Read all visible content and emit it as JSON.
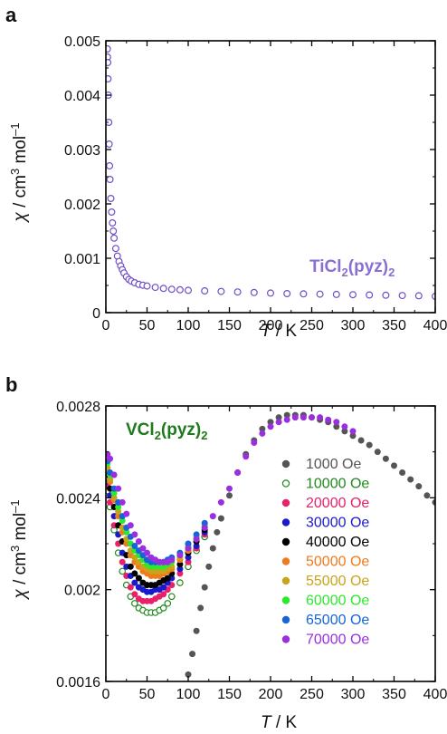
{
  "chart_data": [
    {
      "panel": "a",
      "type": "scatter",
      "compound_label": {
        "main": "TiCl",
        "sub1": "2",
        "mid": "(pyz)",
        "sub2": "2"
      },
      "compound_color": "#8a6fd1",
      "xlabel": {
        "italic": "T",
        "rest": " / K"
      },
      "ylabel": {
        "greek": "χ",
        "pre": " / cm",
        "sup1": "3",
        "post": " mol",
        "sup2": "–1"
      },
      "xlim": [
        0,
        400
      ],
      "ylim": [
        0,
        0.005
      ],
      "xticks": [
        "0",
        "50",
        "100",
        "150",
        "200",
        "250",
        "300",
        "350",
        "400"
      ],
      "yticks": [
        "0",
        "0.001",
        "0.002",
        "0.003",
        "0.004",
        "0.005"
      ],
      "marker_color": "#6f4fc7",
      "series": [
        {
          "x": [
            1.8,
            2,
            2.3,
            2.6,
            3,
            3.5,
            4,
            4.5,
            5,
            6,
            7,
            8,
            9,
            10,
            12,
            14,
            16,
            18,
            20,
            22,
            25,
            28,
            31,
            35,
            40,
            45,
            50,
            60,
            70,
            80,
            90,
            100,
            120,
            140,
            160,
            180,
            200,
            220,
            240,
            260,
            280,
            300,
            320,
            340,
            360,
            380,
            400
          ],
          "y": [
            0.00485,
            0.0047,
            0.0046,
            0.0043,
            0.004,
            0.0035,
            0.0031,
            0.0027,
            0.00245,
            0.0021,
            0.00185,
            0.00165,
            0.0015,
            0.00137,
            0.00118,
            0.00104,
            0.00094,
            0.00086,
            0.00079,
            0.00073,
            0.00066,
            0.00061,
            0.00058,
            0.00055,
            0.00052,
            0.000505,
            0.00049,
            0.000465,
            0.000445,
            0.00043,
            0.00042,
            0.00041,
            0.0004,
            0.00039,
            0.00038,
            0.00037,
            0.00036,
            0.00035,
            0.000345,
            0.00034,
            0.000335,
            0.00033,
            0.000325,
            0.00032,
            0.000315,
            0.00031,
            0.0003
          ]
        }
      ]
    },
    {
      "panel": "b",
      "type": "scatter",
      "compound_label": {
        "main": "VCl",
        "sub1": "2",
        "mid": "(pyz)",
        "sub2": "2"
      },
      "compound_color": "#1e7a1e",
      "xlabel": {
        "italic": "T",
        "rest": " / K"
      },
      "ylabel": {
        "greek": "χ",
        "pre": " / cm",
        "sup1": "3",
        "post": " mol",
        "sup2": "–1"
      },
      "xlim": [
        0,
        400
      ],
      "ylim": [
        0.0016,
        0.0028
      ],
      "xticks": [
        "0",
        "50",
        "100",
        "150",
        "200",
        "250",
        "300",
        "350",
        "400"
      ],
      "yticks": [
        "0.0016",
        "0.002",
        "0.0024",
        "0.0028"
      ],
      "legend_position": "right",
      "series": [
        {
          "name": "1000 Oe",
          "color": "#555555",
          "open": false,
          "x": [
            95,
            100,
            105,
            110,
            115,
            120,
            125,
            130,
            135,
            140,
            150,
            160,
            170,
            180,
            190,
            200,
            210,
            220,
            230,
            240,
            250,
            260,
            270,
            280,
            290,
            300,
            310,
            320,
            330,
            340,
            350,
            360,
            370,
            380,
            390,
            400
          ],
          "y": [
            0.00155,
            0.00163,
            0.00172,
            0.00182,
            0.00192,
            0.00201,
            0.0021,
            0.00218,
            0.00225,
            0.00231,
            0.00241,
            0.00251,
            0.00259,
            0.00265,
            0.0027,
            0.00273,
            0.00275,
            0.00276,
            0.00276,
            0.00276,
            0.00275,
            0.00274,
            0.00273,
            0.00271,
            0.00269,
            0.00267,
            0.00265,
            0.00263,
            0.0026,
            0.00257,
            0.00254,
            0.00251,
            0.00248,
            0.00245,
            0.00241,
            0.00238
          ]
        },
        {
          "name": "10000 Oe",
          "color": "#1f8a1f",
          "open": true,
          "x": [
            2,
            5,
            10,
            15,
            20,
            25,
            30,
            35,
            40,
            45,
            50,
            55,
            60,
            65,
            70,
            75,
            80,
            90,
            100,
            110,
            120
          ],
          "y": [
            0.00243,
            0.00236,
            0.00226,
            0.00216,
            0.00208,
            0.00202,
            0.00197,
            0.00194,
            0.00192,
            0.00191,
            0.0019,
            0.0019,
            0.0019,
            0.00191,
            0.00192,
            0.00194,
            0.00197,
            0.00203,
            0.0021,
            0.00217,
            0.00223
          ]
        },
        {
          "name": "20000 Oe",
          "color": "#e8216a",
          "open": false,
          "x": [
            2,
            5,
            10,
            15,
            20,
            25,
            30,
            35,
            40,
            45,
            50,
            55,
            60,
            65,
            70,
            75,
            80,
            90,
            100,
            110,
            120
          ],
          "y": [
            0.00245,
            0.00238,
            0.00228,
            0.0022,
            0.00212,
            0.00206,
            0.00201,
            0.00198,
            0.00196,
            0.00195,
            0.00195,
            0.00195,
            0.00196,
            0.00197,
            0.00198,
            0.002,
            0.00202,
            0.00207,
            0.00212,
            0.00218,
            0.00224
          ]
        },
        {
          "name": "30000 Oe",
          "color": "#1a1acc",
          "open": false,
          "x": [
            2,
            5,
            10,
            15,
            20,
            25,
            30,
            35,
            40,
            45,
            50,
            55,
            60,
            65,
            70,
            75,
            80,
            90,
            100,
            110,
            120
          ],
          "y": [
            0.00247,
            0.00241,
            0.00232,
            0.00224,
            0.00216,
            0.0021,
            0.00206,
            0.00203,
            0.00201,
            0.002,
            0.00199,
            0.00199,
            0.002,
            0.002,
            0.00201,
            0.00203,
            0.00205,
            0.00209,
            0.00214,
            0.00219,
            0.00225
          ]
        },
        {
          "name": "40000 Oe",
          "color": "#000000",
          "open": false,
          "x": [
            2,
            5,
            10,
            15,
            20,
            25,
            30,
            35,
            40,
            45,
            50,
            55,
            60,
            65,
            70,
            75,
            80,
            90,
            100,
            110,
            120
          ],
          "y": [
            0.0025,
            0.00244,
            0.00236,
            0.00228,
            0.00221,
            0.00215,
            0.0021,
            0.00207,
            0.00205,
            0.00203,
            0.00202,
            0.00202,
            0.00202,
            0.00203,
            0.00204,
            0.00205,
            0.00207,
            0.00211,
            0.00216,
            0.00221,
            0.00226
          ]
        },
        {
          "name": "50000 Oe",
          "color": "#f07a1c",
          "open": false,
          "x": [
            2,
            5,
            10,
            15,
            20,
            25,
            30,
            35,
            40,
            45,
            50,
            55,
            60,
            65,
            70,
            75,
            80,
            90,
            100,
            110,
            120
          ],
          "y": [
            0.00252,
            0.00247,
            0.00239,
            0.00232,
            0.00225,
            0.0022,
            0.00215,
            0.00212,
            0.0021,
            0.00208,
            0.00207,
            0.00206,
            0.00206,
            0.00206,
            0.00207,
            0.00208,
            0.00209,
            0.00213,
            0.00217,
            0.00222,
            0.00227
          ]
        },
        {
          "name": "55000 Oe",
          "color": "#c9a41a",
          "open": false,
          "x": [
            2,
            5,
            10,
            15,
            20,
            25,
            30,
            35,
            40,
            45,
            50,
            55,
            60,
            65,
            70,
            75,
            80,
            90,
            100,
            110,
            120
          ],
          "y": [
            0.00253,
            0.00248,
            0.0024,
            0.00234,
            0.00227,
            0.00222,
            0.00217,
            0.00214,
            0.00212,
            0.0021,
            0.00209,
            0.00208,
            0.00208,
            0.00208,
            0.00208,
            0.00209,
            0.0021,
            0.00214,
            0.00218,
            0.00222,
            0.00227
          ]
        },
        {
          "name": "60000 Oe",
          "color": "#2ee82e",
          "open": false,
          "x": [
            2,
            5,
            10,
            15,
            20,
            25,
            30,
            35,
            40,
            45,
            50,
            55,
            60,
            65,
            70,
            75,
            80,
            90,
            100,
            110,
            120
          ],
          "y": [
            0.00255,
            0.0025,
            0.00242,
            0.00236,
            0.0023,
            0.00225,
            0.0022,
            0.00217,
            0.00215,
            0.00213,
            0.00211,
            0.0021,
            0.0021,
            0.0021,
            0.0021,
            0.00211,
            0.00212,
            0.00215,
            0.00219,
            0.00223,
            0.00228
          ]
        },
        {
          "name": "65000 Oe",
          "color": "#1565d8",
          "open": false,
          "x": [
            2,
            5,
            10,
            15,
            20,
            25,
            30,
            35,
            40,
            45,
            50,
            55,
            60,
            65,
            70,
            75,
            80,
            90,
            100,
            110,
            120
          ],
          "y": [
            0.00256,
            0.00251,
            0.00244,
            0.00238,
            0.00232,
            0.00227,
            0.00223,
            0.00219,
            0.00217,
            0.00215,
            0.00213,
            0.00212,
            0.00212,
            0.00212,
            0.00212,
            0.00213,
            0.00214,
            0.00216,
            0.0022,
            0.00224,
            0.00229
          ]
        },
        {
          "name": "70000 Oe",
          "color": "#9b2fe0",
          "open": false,
          "x": [
            2,
            5,
            10,
            15,
            20,
            25,
            30,
            35,
            40,
            45,
            50,
            55,
            60,
            65,
            70,
            75,
            80,
            90,
            100,
            110,
            120,
            130,
            140,
            150,
            160,
            170,
            180,
            190,
            200,
            210,
            220,
            230,
            240,
            250,
            260,
            270,
            280,
            290,
            300
          ],
          "y": [
            0.00259,
            0.00257,
            0.0025,
            0.00244,
            0.00238,
            0.00233,
            0.00228,
            0.00224,
            0.00221,
            0.00218,
            0.00216,
            0.00214,
            0.00213,
            0.00212,
            0.00212,
            0.00212,
            0.00213,
            0.00215,
            0.00218,
            0.00222,
            0.00227,
            0.00232,
            0.00238,
            0.00244,
            0.00251,
            0.00258,
            0.00264,
            0.00268,
            0.00271,
            0.00273,
            0.00274,
            0.00275,
            0.00275,
            0.00275,
            0.00275,
            0.00274,
            0.00273,
            0.00271,
            0.00269
          ]
        }
      ]
    }
  ]
}
